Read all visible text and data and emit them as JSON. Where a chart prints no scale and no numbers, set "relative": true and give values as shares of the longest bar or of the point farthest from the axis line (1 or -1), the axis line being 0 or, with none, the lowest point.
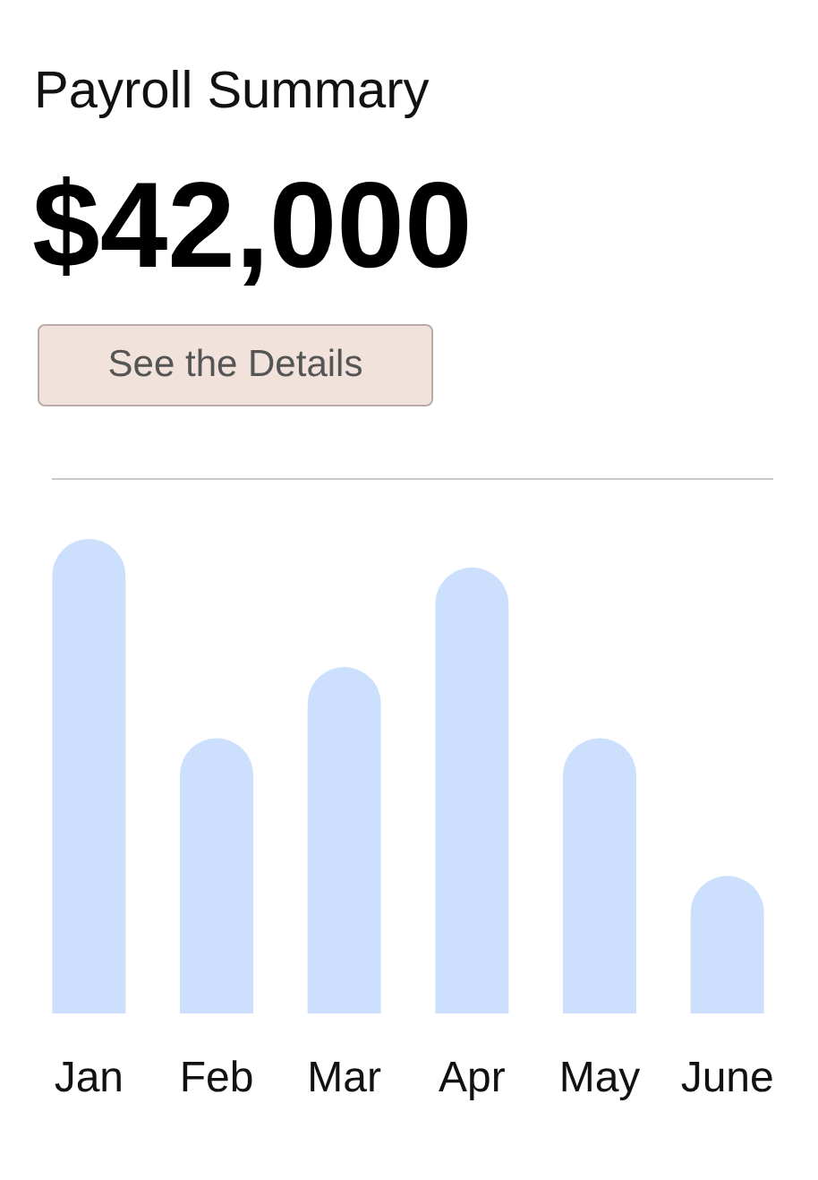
{
  "chart_data": {
    "type": "bar",
    "title": "Payroll Summary",
    "subtitle": "$42,000",
    "annotations": [
      "See the Details"
    ],
    "categories": [
      "Jan",
      "Feb",
      "Mar",
      "Apr",
      "May",
      "June"
    ],
    "values": [
      1,
      0.58,
      0.73,
      0.94,
      0.58,
      0.29
    ],
    "color": "#cce0fd",
    "relative": true
  }
}
